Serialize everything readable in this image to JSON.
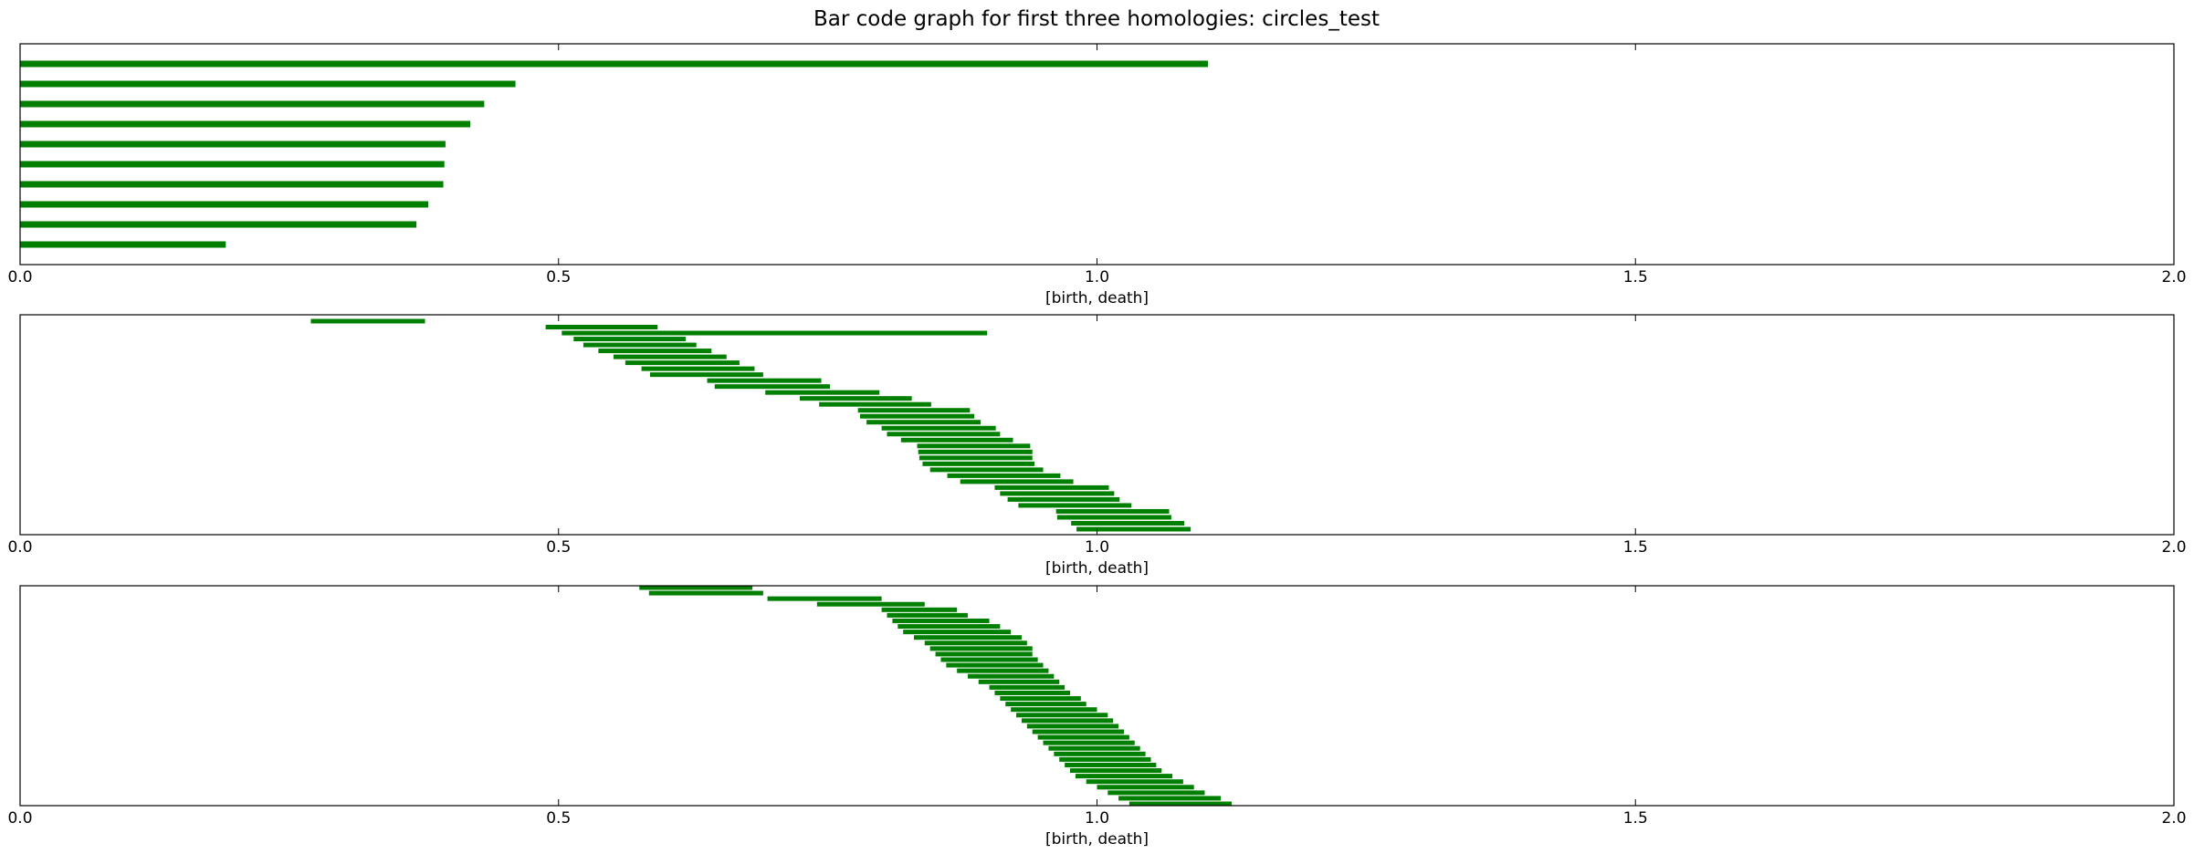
{
  "figure_title": "Bar code graph for first three homologies: circles_test",
  "colors": {
    "bar": "#007f00",
    "frame": "#000000",
    "background": "#ffffff"
  },
  "chart_data": [
    {
      "type": "barcode",
      "homology": 0,
      "xlabel": "[birth, death]",
      "xlim": [
        0,
        2
      ],
      "xticks": [
        "0.0",
        "0.5",
        "1.0",
        "1.5",
        "2.0"
      ],
      "grid": false,
      "intervals": [
        [
          0,
          1.103
        ],
        [
          0,
          0.46
        ],
        [
          0,
          0.431
        ],
        [
          0,
          0.418
        ],
        [
          0,
          0.395
        ],
        [
          0,
          0.394
        ],
        [
          0,
          0.393
        ],
        [
          0,
          0.379
        ],
        [
          0,
          0.368
        ],
        [
          0,
          0.191
        ]
      ]
    },
    {
      "type": "barcode",
      "homology": 1,
      "xlabel": "[birth, death]",
      "xlim": [
        0,
        2
      ],
      "xticks": [
        "0.0",
        "0.5",
        "1.0",
        "1.5",
        "2.0"
      ],
      "grid": false,
      "intervals": [
        [
          0.27,
          0.376
        ],
        [
          0.488,
          0.592
        ],
        [
          0.503,
          0.898
        ],
        [
          0.514,
          0.618
        ],
        [
          0.523,
          0.628
        ],
        [
          0.537,
          0.642
        ],
        [
          0.551,
          0.656
        ],
        [
          0.562,
          0.668
        ],
        [
          0.577,
          0.682
        ],
        [
          0.585,
          0.69
        ],
        [
          0.638,
          0.744
        ],
        [
          0.645,
          0.752
        ],
        [
          0.692,
          0.798
        ],
        [
          0.724,
          0.828
        ],
        [
          0.742,
          0.846
        ],
        [
          0.778,
          0.882
        ],
        [
          0.78,
          0.886
        ],
        [
          0.786,
          0.892
        ],
        [
          0.8,
          0.906
        ],
        [
          0.805,
          0.91
        ],
        [
          0.818,
          0.922
        ],
        [
          0.833,
          0.938
        ],
        [
          0.834,
          0.94
        ],
        [
          0.835,
          0.94
        ],
        [
          0.838,
          0.942
        ],
        [
          0.845,
          0.95
        ],
        [
          0.861,
          0.966
        ],
        [
          0.873,
          0.978
        ],
        [
          0.905,
          1.011
        ],
        [
          0.91,
          1.016
        ],
        [
          0.917,
          1.021
        ],
        [
          0.927,
          1.032
        ],
        [
          0.962,
          1.067
        ],
        [
          0.963,
          1.069
        ],
        [
          0.976,
          1.081
        ],
        [
          0.981,
          1.087
        ]
      ]
    },
    {
      "type": "barcode",
      "homology": 2,
      "xlabel": "[birth, death]",
      "xlim": [
        0,
        2
      ],
      "xticks": [
        "0.0",
        "0.5",
        "1.0",
        "1.5",
        "2.0"
      ],
      "grid": false,
      "intervals": [
        [
          0.575,
          0.68
        ],
        [
          0.584,
          0.69
        ],
        [
          0.694,
          0.8
        ],
        [
          0.74,
          0.84
        ],
        [
          0.8,
          0.87
        ],
        [
          0.805,
          0.88
        ],
        [
          0.81,
          0.9
        ],
        [
          0.815,
          0.91
        ],
        [
          0.82,
          0.92
        ],
        [
          0.83,
          0.93
        ],
        [
          0.84,
          0.935
        ],
        [
          0.845,
          0.94
        ],
        [
          0.85,
          0.94
        ],
        [
          0.855,
          0.945
        ],
        [
          0.86,
          0.95
        ],
        [
          0.87,
          0.955
        ],
        [
          0.88,
          0.96
        ],
        [
          0.89,
          0.965
        ],
        [
          0.9,
          0.97
        ],
        [
          0.905,
          0.975
        ],
        [
          0.91,
          0.985
        ],
        [
          0.915,
          0.99
        ],
        [
          0.92,
          1.0
        ],
        [
          0.925,
          1.01
        ],
        [
          0.93,
          1.015
        ],
        [
          0.935,
          1.02
        ],
        [
          0.94,
          1.025
        ],
        [
          0.945,
          1.03
        ],
        [
          0.95,
          1.035
        ],
        [
          0.955,
          1.04
        ],
        [
          0.96,
          1.045
        ],
        [
          0.965,
          1.05
        ],
        [
          0.97,
          1.055
        ],
        [
          0.975,
          1.06
        ],
        [
          0.98,
          1.07
        ],
        [
          0.99,
          1.08
        ],
        [
          1.0,
          1.09
        ],
        [
          1.01,
          1.1
        ],
        [
          1.02,
          1.115
        ],
        [
          1.03,
          1.125
        ]
      ]
    }
  ]
}
